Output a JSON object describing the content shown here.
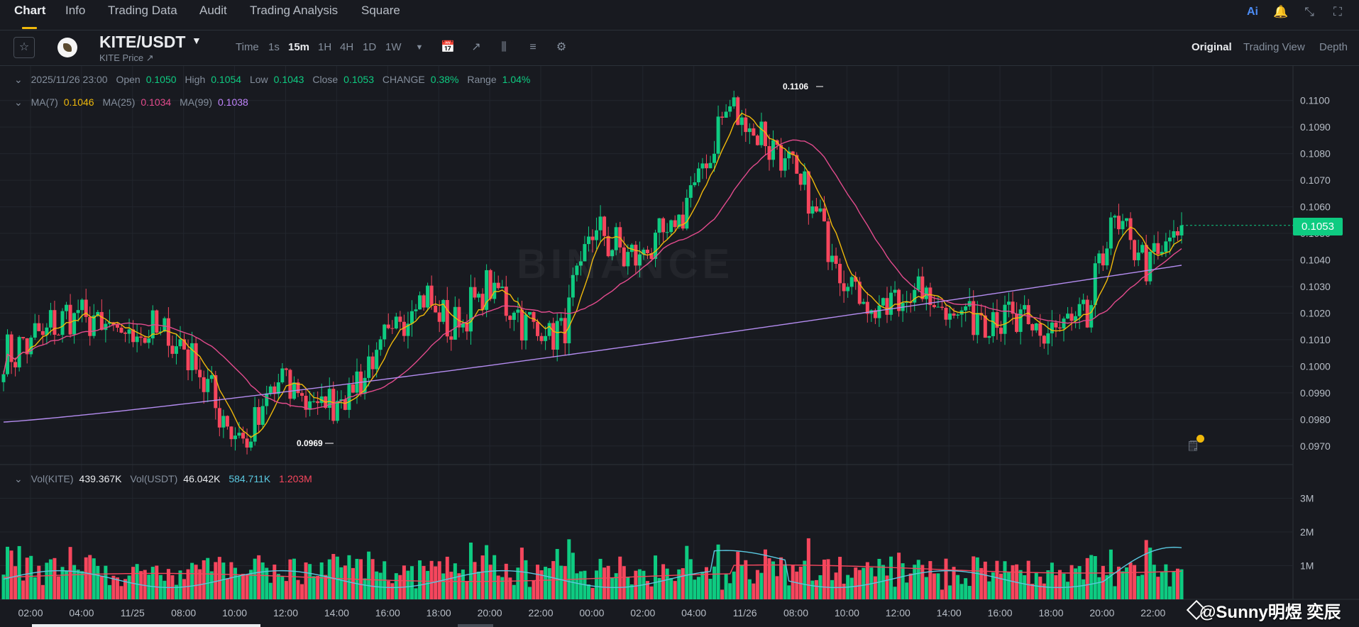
{
  "nav": {
    "tabs": [
      "Chart",
      "Info",
      "Trading Data",
      "Audit",
      "Trading Analysis",
      "Square"
    ],
    "active": "Chart",
    "ai_label": "Ai"
  },
  "symbol": {
    "pair": "KITE/USDT",
    "subtitle": "KITE Price ↗"
  },
  "intervals": [
    "Time",
    "1s",
    "15m",
    "1H",
    "4H",
    "1D",
    "1W"
  ],
  "active_interval": "15m",
  "views": [
    "Original",
    "Trading View",
    "Depth"
  ],
  "active_view": "Original",
  "ohlc": {
    "date": "2025/11/26 23:00",
    "open_label": "Open",
    "open": "0.1050",
    "high_label": "High",
    "high": "0.1054",
    "low_label": "Low",
    "low": "0.1043",
    "close_label": "Close",
    "close": "0.1053",
    "change_label": "CHANGE",
    "change": "0.38%",
    "range_label": "Range",
    "range": "1.04%"
  },
  "ma": {
    "ma7_label": "MA(7)",
    "ma7": "0.1046",
    "ma25_label": "MA(25)",
    "ma25": "0.1034",
    "ma99_label": "MA(99)",
    "ma99": "0.1038"
  },
  "volume": {
    "kite_label": "Vol(KITE)",
    "kite": "439.367K",
    "usdt_label": "Vol(USDT)",
    "usdt": "46.042K",
    "ma1": "584.711K",
    "ma2": "1.203M"
  },
  "last_price": "0.1053",
  "high_marker": "0.1106",
  "low_marker": "0.0969",
  "watermark": "@Sunny明煜 奕辰",
  "logo_watermark": "BINANCE",
  "colors": {
    "up": "#0ecb81",
    "down": "#f6465d",
    "ma7": "#f0b90b",
    "ma25": "#e34b8d",
    "ma99": "#b48cf0",
    "volma1": "#5ac8e0",
    "volma2": "#f6465d"
  },
  "chart_data": {
    "type": "candlestick",
    "price_ticks": [
      "0.1100",
      "0.1090",
      "0.1080",
      "0.1070",
      "0.1060",
      "0.1050",
      "0.1040",
      "0.1030",
      "0.1020",
      "0.1010",
      "0.1000",
      "0.0990",
      "0.0980",
      "0.0970"
    ],
    "price_range": [
      0.0963,
      0.1113
    ],
    "volume_ticks": [
      "3M",
      "2M",
      "1M"
    ],
    "volume_range": [
      0,
      4000000
    ],
    "time_labels": [
      "02:00",
      "04:00",
      "11/25",
      "08:00",
      "10:00",
      "12:00",
      "14:00",
      "16:00",
      "18:00",
      "20:00",
      "22:00",
      "00:00",
      "02:00",
      "04:00",
      "11/26",
      "08:00",
      "10:00",
      "12:00",
      "14:00",
      "16:00",
      "18:00",
      "20:00",
      "22:00"
    ],
    "anchors": [
      [
        0,
        0.1003
      ],
      [
        18,
        0.102
      ],
      [
        28,
        0.1012
      ],
      [
        40,
        0.1013
      ],
      [
        48,
        0.1004
      ],
      [
        56,
        0.098
      ],
      [
        62,
        0.0971
      ],
      [
        70,
        0.0995
      ],
      [
        80,
        0.0985
      ],
      [
        88,
        0.099
      ],
      [
        98,
        0.101
      ],
      [
        106,
        0.1028
      ],
      [
        114,
        0.1014
      ],
      [
        124,
        0.103
      ],
      [
        134,
        0.1015
      ],
      [
        142,
        0.1012
      ],
      [
        150,
        0.1052
      ],
      [
        160,
        0.104
      ],
      [
        170,
        0.105
      ],
      [
        180,
        0.108
      ],
      [
        184,
        0.1098
      ],
      [
        198,
        0.108
      ],
      [
        206,
        0.106
      ],
      [
        214,
        0.1035
      ],
      [
        222,
        0.102
      ],
      [
        232,
        0.1028
      ],
      [
        244,
        0.102
      ],
      [
        256,
        0.1018
      ],
      [
        264,
        0.1012
      ],
      [
        276,
        0.1018
      ],
      [
        282,
        0.1055
      ],
      [
        292,
        0.1038
      ],
      [
        300,
        0.1052
      ]
    ],
    "candle_count": 301
  }
}
